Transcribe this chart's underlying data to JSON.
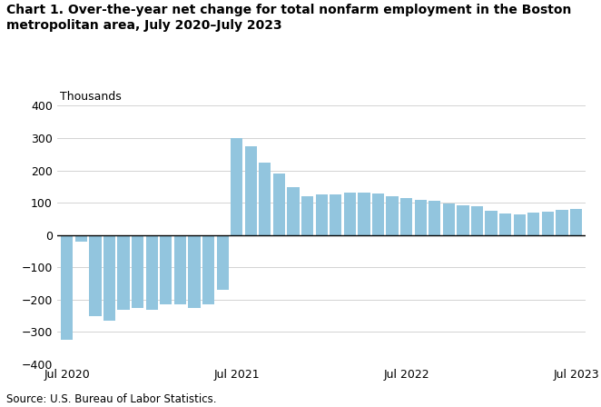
{
  "title": "Chart 1. Over-the-year net change for total nonfarm employment in the Boston\nmetropolitan area, July 2020–July 2023",
  "ylabel_text": "Thousands",
  "source": "Source: U.S. Bureau of Labor Statistics.",
  "ylim": [
    -400,
    400
  ],
  "yticks": [
    -400,
    -300,
    -200,
    -100,
    0,
    100,
    200,
    300,
    400
  ],
  "bar_color": "#92c5de",
  "x_tick_labels": [
    "Jul 2020",
    "Jul 2021",
    "Jul 2022",
    "Jul 2023"
  ],
  "x_tick_positions": [
    0,
    12,
    24,
    36
  ],
  "values": [
    -325,
    -20,
    -250,
    -265,
    -230,
    -225,
    -230,
    -215,
    -215,
    -225,
    -215,
    -170,
    300,
    275,
    225,
    190,
    148,
    120,
    125,
    127,
    130,
    132,
    128,
    120,
    115,
    108,
    107,
    98,
    93,
    88,
    75,
    68,
    65,
    70,
    73,
    77,
    80
  ]
}
